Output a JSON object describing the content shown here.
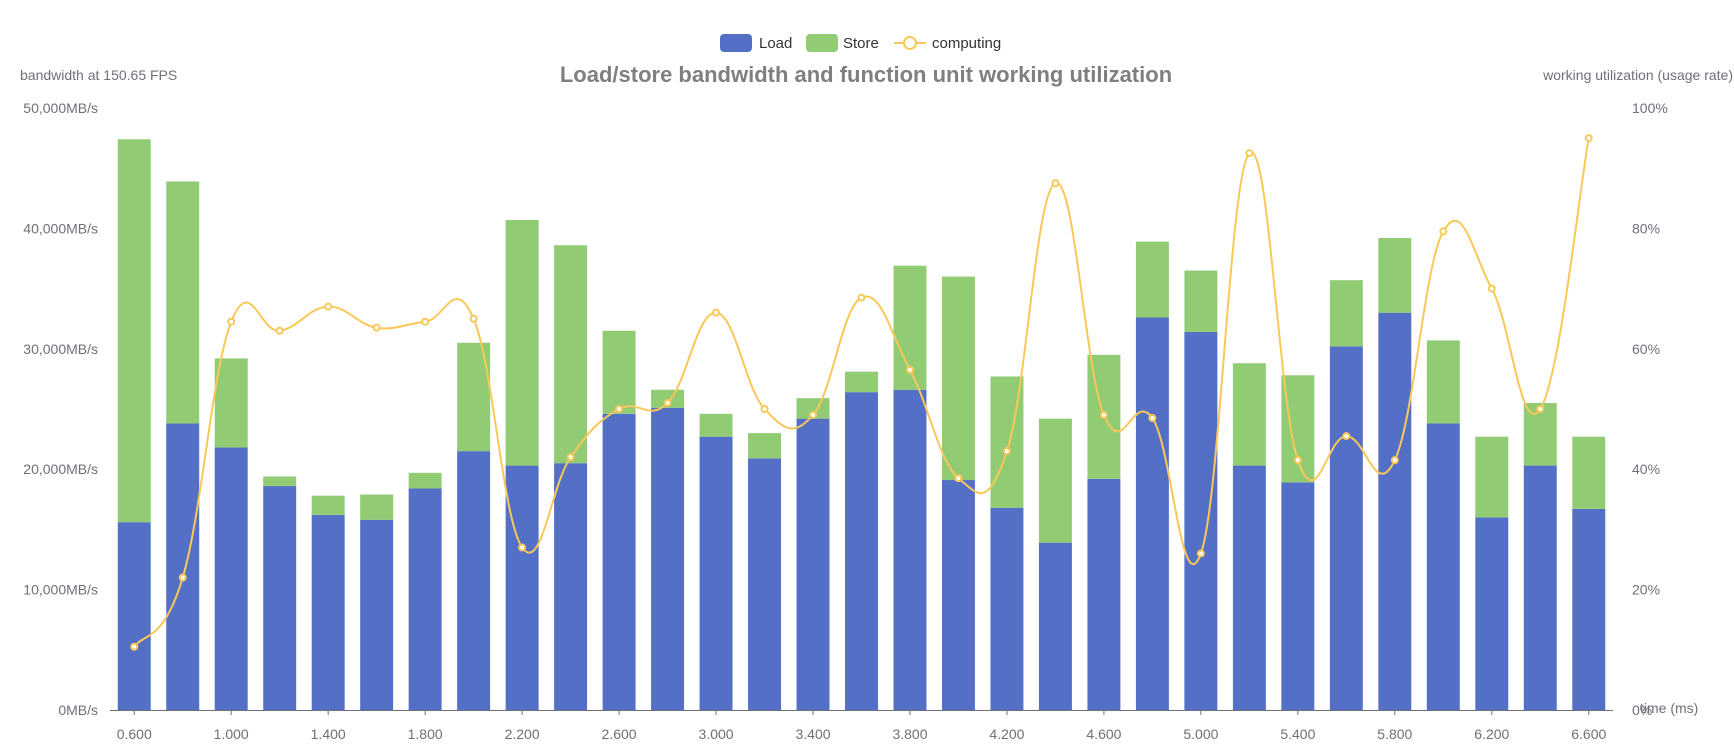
{
  "chart_data": {
    "type": "bar",
    "title": "Load/store bandwidth and function unit working utilization",
    "left_axis_name": "bandwidth at 150.65 FPS",
    "right_axis_name": "working utilization (usage rate)",
    "xlabel": "time (ms)",
    "left_ticks": [
      "0MB/s",
      "10,000MB/s",
      "20,000MB/s",
      "30,000MB/s",
      "40,000MB/s",
      "50,000MB/s"
    ],
    "right_ticks": [
      "0%",
      "20%",
      "40%",
      "60%",
      "80%",
      "100%"
    ],
    "ylim_left": [
      0,
      50000
    ],
    "ylim_right": [
      0,
      100
    ],
    "stacked": true,
    "categories": [
      "0.600",
      "0.800",
      "1.000",
      "1.200",
      "1.400",
      "1.600",
      "1.800",
      "2.000",
      "2.200",
      "2.400",
      "2.600",
      "2.800",
      "3.000",
      "3.200",
      "3.400",
      "3.600",
      "3.800",
      "4.000",
      "4.200",
      "4.400",
      "4.600",
      "4.800",
      "5.000",
      "5.200",
      "5.400",
      "5.600",
      "5.800",
      "6.000",
      "6.200",
      "6.400",
      "6.600"
    ],
    "x_tick_labels": [
      "0.600",
      "1.000",
      "1.400",
      "1.800",
      "2.200",
      "2.600",
      "3.000",
      "3.400",
      "3.800",
      "4.200",
      "4.600",
      "5.000",
      "5.400",
      "5.800",
      "6.200",
      "6.600"
    ],
    "series": [
      {
        "name": "Load",
        "type": "bar",
        "axis": "left",
        "color": "#5470c6",
        "values": [
          15600,
          23800,
          21800,
          18600,
          16200,
          15800,
          18400,
          21500,
          20300,
          20500,
          24600,
          25100,
          22700,
          20900,
          24200,
          26400,
          26600,
          19100,
          16800,
          13900,
          19200,
          32600,
          31400,
          20300,
          18900,
          30200,
          33000,
          23800,
          16000,
          20300,
          16700
        ]
      },
      {
        "name": "Store",
        "type": "bar",
        "axis": "left",
        "color": "#91cc75",
        "values": [
          31800,
          20100,
          7400,
          800,
          1600,
          2100,
          1300,
          9000,
          20400,
          18100,
          6900,
          1500,
          1900,
          2100,
          1700,
          1700,
          10300,
          16900,
          10900,
          10300,
          10300,
          6300,
          5100,
          8500,
          8900,
          5500,
          6200,
          6900,
          6700,
          5200,
          6000
        ]
      },
      {
        "name": "computing",
        "type": "line",
        "axis": "right",
        "color": "#fac858",
        "values": [
          10.5,
          22,
          64.5,
          63,
          67,
          63.5,
          64.5,
          65,
          27,
          42,
          50,
          51,
          66,
          50,
          49,
          68.5,
          56.5,
          38.5,
          43,
          87.5,
          49,
          48.5,
          26,
          92.5,
          41.5,
          45.5,
          41.5,
          79.5,
          70,
          50,
          95
        ]
      }
    ],
    "legend_position": "top-center"
  }
}
